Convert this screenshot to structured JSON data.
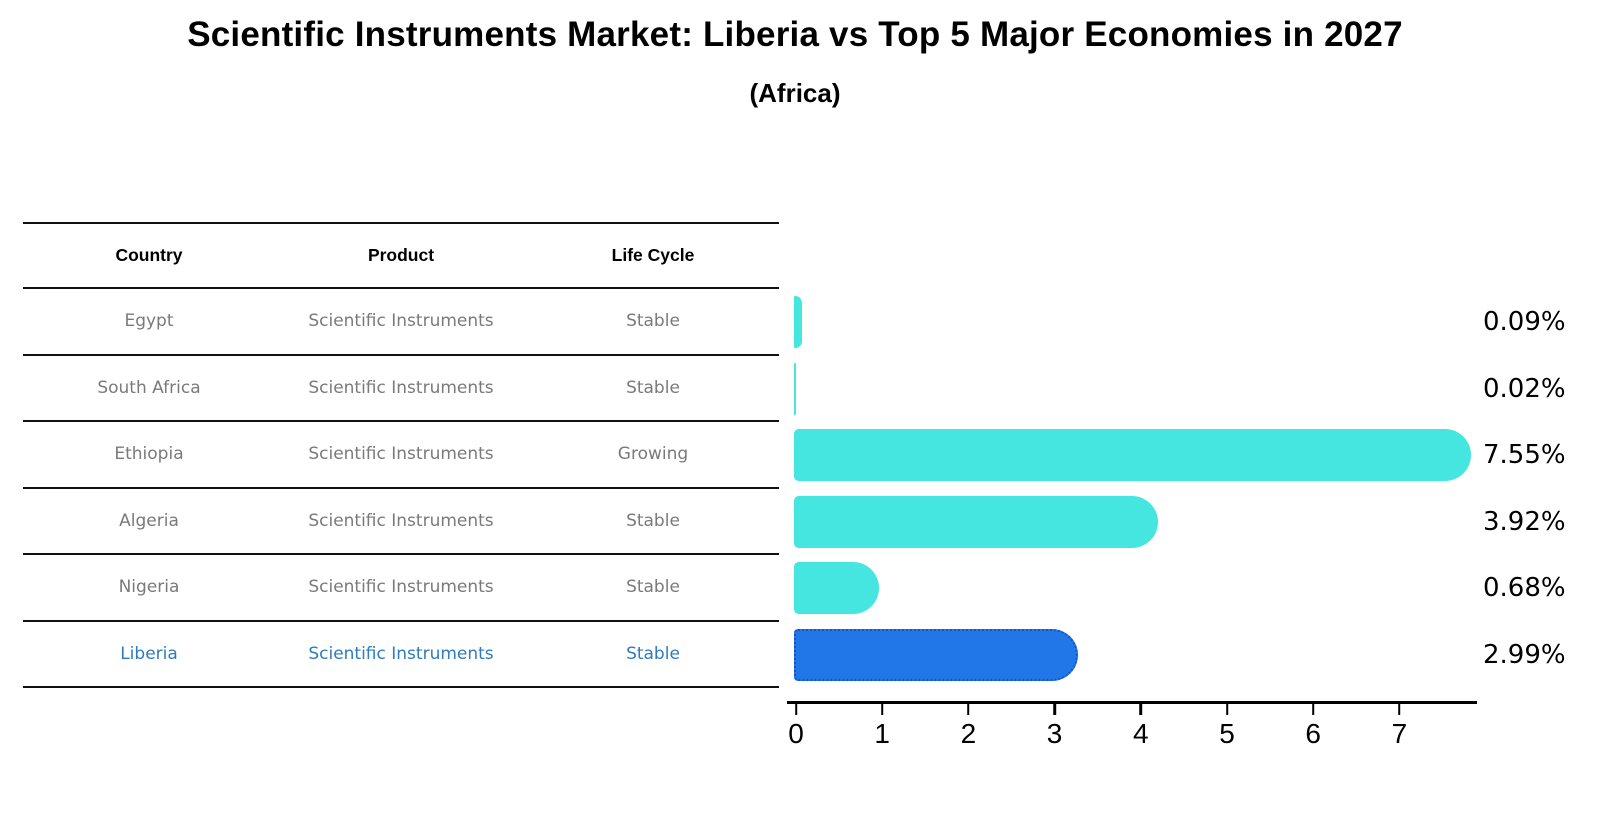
{
  "title": "Scientific Instruments Market: Liberia vs Top 5 Major Economies in 2027",
  "subtitle": "(Africa)",
  "table": {
    "headers": {
      "country": "Country",
      "product": "Product",
      "life_cycle": "Life Cycle"
    },
    "rows": [
      {
        "country": "Egypt",
        "product": "Scientific Instruments",
        "life_cycle": "Stable",
        "highlight": false
      },
      {
        "country": "South Africa",
        "product": "Scientific Instruments",
        "life_cycle": "Stable",
        "highlight": false
      },
      {
        "country": "Ethiopia",
        "product": "Scientific Instruments",
        "life_cycle": "Growing",
        "highlight": false
      },
      {
        "country": "Algeria",
        "product": "Scientific Instruments",
        "life_cycle": "Stable",
        "highlight": false
      },
      {
        "country": "Nigeria",
        "product": "Scientific Instruments",
        "life_cycle": "Stable",
        "highlight": false
      },
      {
        "country": "Liberia",
        "product": "Scientific Instruments",
        "life_cycle": "Stable",
        "highlight": true
      }
    ]
  },
  "chart_data": {
    "type": "bar",
    "orientation": "horizontal",
    "title": "Scientific Instruments Market: Liberia vs Top 5 Major Economies in 2027 (Africa)",
    "categories": [
      "Egypt",
      "South Africa",
      "Ethiopia",
      "Algeria",
      "Nigeria",
      "Liberia"
    ],
    "values": [
      0.09,
      0.02,
      7.55,
      3.92,
      0.68,
      2.99
    ],
    "labels": [
      "0.09%",
      "0.02%",
      "7.55%",
      "3.92%",
      "0.68%",
      "2.99%"
    ],
    "xlabel": "",
    "ylabel": "",
    "xlim": [
      0,
      7.9
    ],
    "xticks": [
      "0",
      "1",
      "2",
      "3",
      "4",
      "5",
      "6",
      "7"
    ],
    "grid": false,
    "legend": false,
    "bar_color": "#45E5E0",
    "highlight_color": "#2277E8",
    "highlight_border_color": "#1455C8",
    "highlight_index": 5,
    "highlight_category": "Liberia"
  },
  "colors": {
    "row_text": "#7A7A7A",
    "highlight_text": "#2E7BBF",
    "header_text": "#000000",
    "rule": "#111111"
  }
}
